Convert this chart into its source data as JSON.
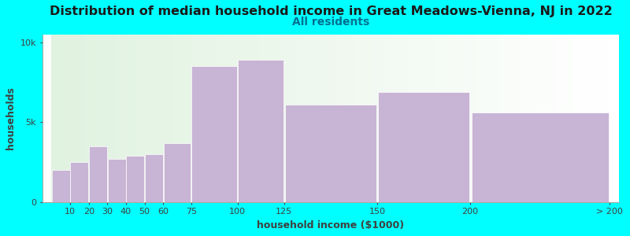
{
  "title": "Distribution of median household income in Great Meadows-Vienna, NJ in 2022",
  "subtitle": "All residents",
  "xlabel": "household income ($1000)",
  "ylabel": "households",
  "background_color": "#00FFFF",
  "bar_color": "#C8B4D4",
  "bar_edge_color": "#FFFFFF",
  "categories": [
    "10",
    "20",
    "30",
    "40",
    "50",
    "60",
    "75",
    "100",
    "125",
    "150",
    "200",
    "> 200"
  ],
  "bar_left_edges": [
    0,
    10,
    20,
    30,
    40,
    50,
    60,
    75,
    100,
    125,
    175,
    225
  ],
  "bar_widths": [
    10,
    10,
    10,
    10,
    10,
    10,
    15,
    25,
    25,
    50,
    50,
    75
  ],
  "values": [
    2000,
    2500,
    3500,
    2700,
    2900,
    3000,
    3700,
    8500,
    8900,
    6100,
    6900,
    5600
  ],
  "ylim": [
    0,
    10500
  ],
  "yticks": [
    0,
    5000,
    10000
  ],
  "ytick_labels": [
    "0",
    "5k",
    "10k"
  ],
  "title_fontsize": 11.5,
  "subtitle_fontsize": 10,
  "axis_label_fontsize": 9,
  "tick_fontsize": 8,
  "title_color": "#1a1a1a",
  "subtitle_color": "#007090",
  "label_color": "#404040",
  "xtick_positions": [
    0,
    10,
    20,
    30,
    40,
    50,
    60,
    75,
    100,
    125,
    175,
    225,
    300
  ],
  "xtick_labels": [
    "",
    "10",
    "20",
    "30",
    "40",
    "50",
    "60",
    "75",
    "100",
    "125",
    "150",
    "200",
    "> 200"
  ]
}
